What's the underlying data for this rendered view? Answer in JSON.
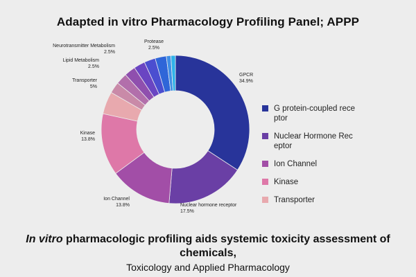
{
  "title": "Adapted in vitro Pharmacology Profiling Panel; APPP",
  "chart_data": {
    "type": "pie",
    "title": "Adapted in vitro Pharmacology Profiling Panel; APPP",
    "slices": [
      {
        "label": "GPCR",
        "value": 34.9,
        "value_text": "34.9%",
        "color": "#28349a"
      },
      {
        "label": "Nuclear hormone receptor",
        "value": 17.5,
        "value_text": "17.5%",
        "color": "#6a3fa5"
      },
      {
        "label": "Ion Channel",
        "value": 13.8,
        "value_text": "13.8%",
        "color": "#a24ea7"
      },
      {
        "label": "Kinase",
        "value": 13.8,
        "value_text": "13.8%",
        "color": "#de78a8"
      },
      {
        "label": "Transporter",
        "value": 5,
        "value_text": "5%",
        "color": "#e8a9ae"
      },
      {
        "label": "",
        "value": 2.5,
        "value_text": "",
        "color": "#c98aa8"
      },
      {
        "label": "",
        "value": 2.5,
        "value_text": "",
        "color": "#b26fab"
      },
      {
        "label": "Lipid Metabolism",
        "value": 2.5,
        "value_text": "2.5%",
        "color": "#8f4fae"
      },
      {
        "label": "Neurotransmitter Metabolism",
        "value": 2.5,
        "value_text": "2.5%",
        "color": "#6a45c2"
      },
      {
        "label": "",
        "value": 2.5,
        "value_text": "",
        "color": "#4b4ed0"
      },
      {
        "label": "Protease",
        "value": 2.5,
        "value_text": "2.5%",
        "color": "#2f66d8"
      },
      {
        "label": "",
        "value": 1.0,
        "value_text": "",
        "color": "#3f8ee6"
      },
      {
        "label": "",
        "value": 1.0,
        "value_text": "",
        "color": "#2fb2ea"
      }
    ],
    "legend": [
      {
        "label": "G protein-coupled receptor",
        "color": "#28349a"
      },
      {
        "label": "Nuclear Hormone Receptor",
        "color": "#6a3fa5"
      },
      {
        "label": "Ion Channel",
        "color": "#a24ea7"
      },
      {
        "label": "Kinase",
        "color": "#de78a8"
      },
      {
        "label": "Transporter",
        "color": "#e8a9ae"
      }
    ],
    "legend_position": "right",
    "donut": true
  },
  "caption": {
    "italic_part": "In vitro",
    "citation_rest": " pharmacologic profiling aids systemic toxicity assessment of chemicals,",
    "journal": "Toxicology and Applied Pharmacology"
  }
}
